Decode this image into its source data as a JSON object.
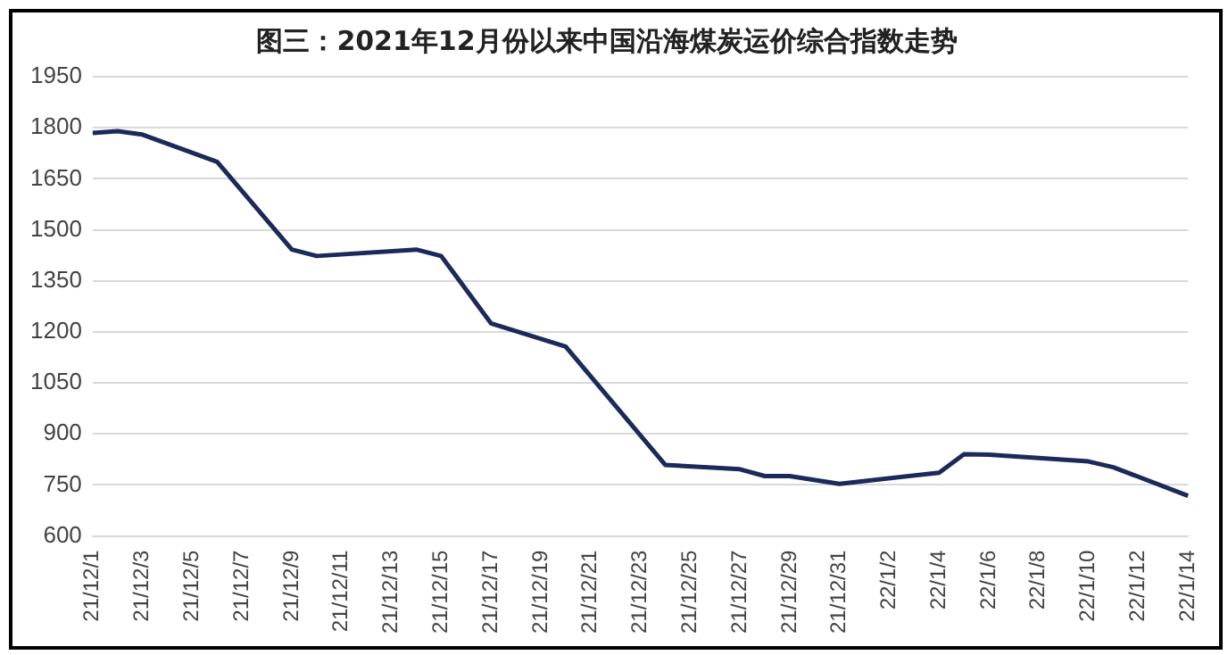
{
  "chart_data": {
    "type": "line",
    "title": "图三：2021年12月份以来中国沿海煤炭运价综合指数走势",
    "categories": [
      "21/12/1",
      null,
      "21/12/3",
      null,
      "21/12/5",
      null,
      "21/12/7",
      null,
      "21/12/9",
      null,
      "21/12/11",
      null,
      "21/12/13",
      null,
      "21/12/15",
      null,
      "21/12/17",
      null,
      "21/12/19",
      null,
      "21/12/21",
      null,
      "21/12/23",
      null,
      "21/12/25",
      null,
      "21/12/27",
      null,
      "21/12/29",
      null,
      "21/12/31",
      null,
      "22/1/2",
      null,
      "22/1/4",
      null,
      "22/1/6",
      null,
      "22/1/8",
      null,
      "22/1/10",
      null,
      "22/1/12",
      null,
      "22/1/14"
    ],
    "series": [
      {
        "color": "#1b2a5a",
        "values": [
          1785,
          1790,
          1780,
          null,
          null,
          1700,
          null,
          null,
          1442,
          1423,
          null,
          null,
          null,
          1442,
          1423,
          null,
          1225,
          null,
          null,
          1157,
          null,
          null,
          null,
          809,
          null,
          null,
          796,
          776,
          776,
          null,
          753,
          null,
          null,
          null,
          786,
          840,
          839,
          null,
          null,
          null,
          819,
          802,
          null,
          null,
          718
        ]
      }
    ],
    "ylim": [
      600,
      1950
    ],
    "yticks": [
      600,
      750,
      900,
      1050,
      1200,
      1350,
      1500,
      1650,
      1800,
      1950
    ],
    "grid": "y",
    "legend": false,
    "marker": "none",
    "line_style": "solid"
  }
}
